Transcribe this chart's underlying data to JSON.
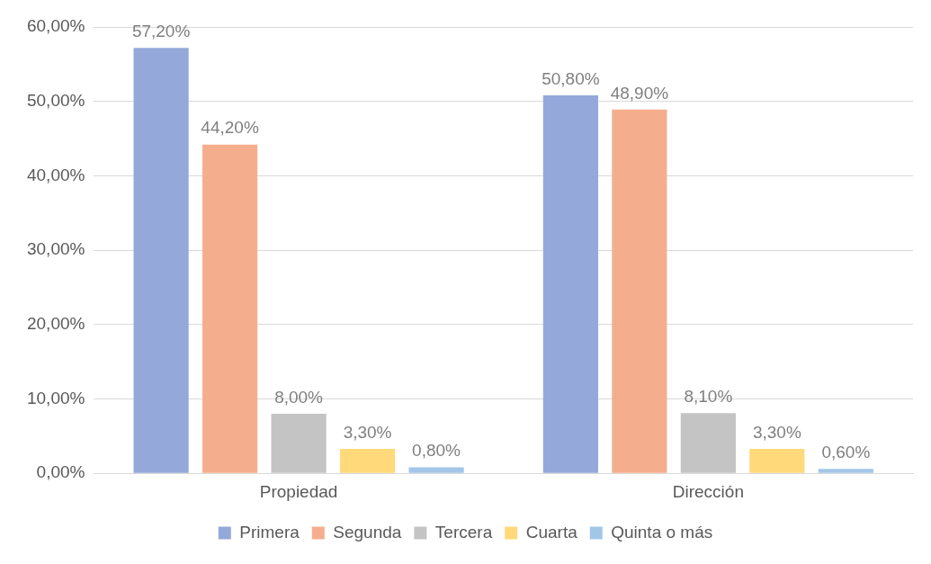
{
  "chart_data": {
    "type": "bar",
    "categories": [
      "Propiedad",
      "Dirección"
    ],
    "series": [
      {
        "name": "Primera",
        "color": "#94a9da",
        "values": [
          57.2,
          50.8
        ],
        "value_labels": [
          "57,20%",
          "50,80%"
        ]
      },
      {
        "name": "Segunda",
        "color": "#f5ae8d",
        "values": [
          44.2,
          48.9
        ],
        "value_labels": [
          "44,20%",
          "48,90%"
        ]
      },
      {
        "name": "Tercera",
        "color": "#c4c4c4",
        "values": [
          8.0,
          8.1
        ],
        "value_labels": [
          "8,00%",
          "8,10%"
        ]
      },
      {
        "name": "Cuarta",
        "color": "#ffd97a",
        "values": [
          3.3,
          3.3
        ],
        "value_labels": [
          "3,30%",
          "3,30%"
        ]
      },
      {
        "name": "Quinta o más",
        "color": "#a3c6e8",
        "values": [
          0.8,
          0.6
        ],
        "value_labels": [
          "0,80%",
          "0,60%"
        ]
      }
    ],
    "ylim": [
      0,
      60
    ],
    "yticks": [
      {
        "value": 0,
        "label": "0,00%"
      },
      {
        "value": 10,
        "label": "10,00%"
      },
      {
        "value": 20,
        "label": "20,00%"
      },
      {
        "value": 30,
        "label": "30,00%"
      },
      {
        "value": 40,
        "label": "40,00%"
      },
      {
        "value": 50,
        "label": "50,00%"
      },
      {
        "value": 60,
        "label": "60,00%"
      }
    ],
    "grid": "y",
    "legend": "bottom"
  }
}
